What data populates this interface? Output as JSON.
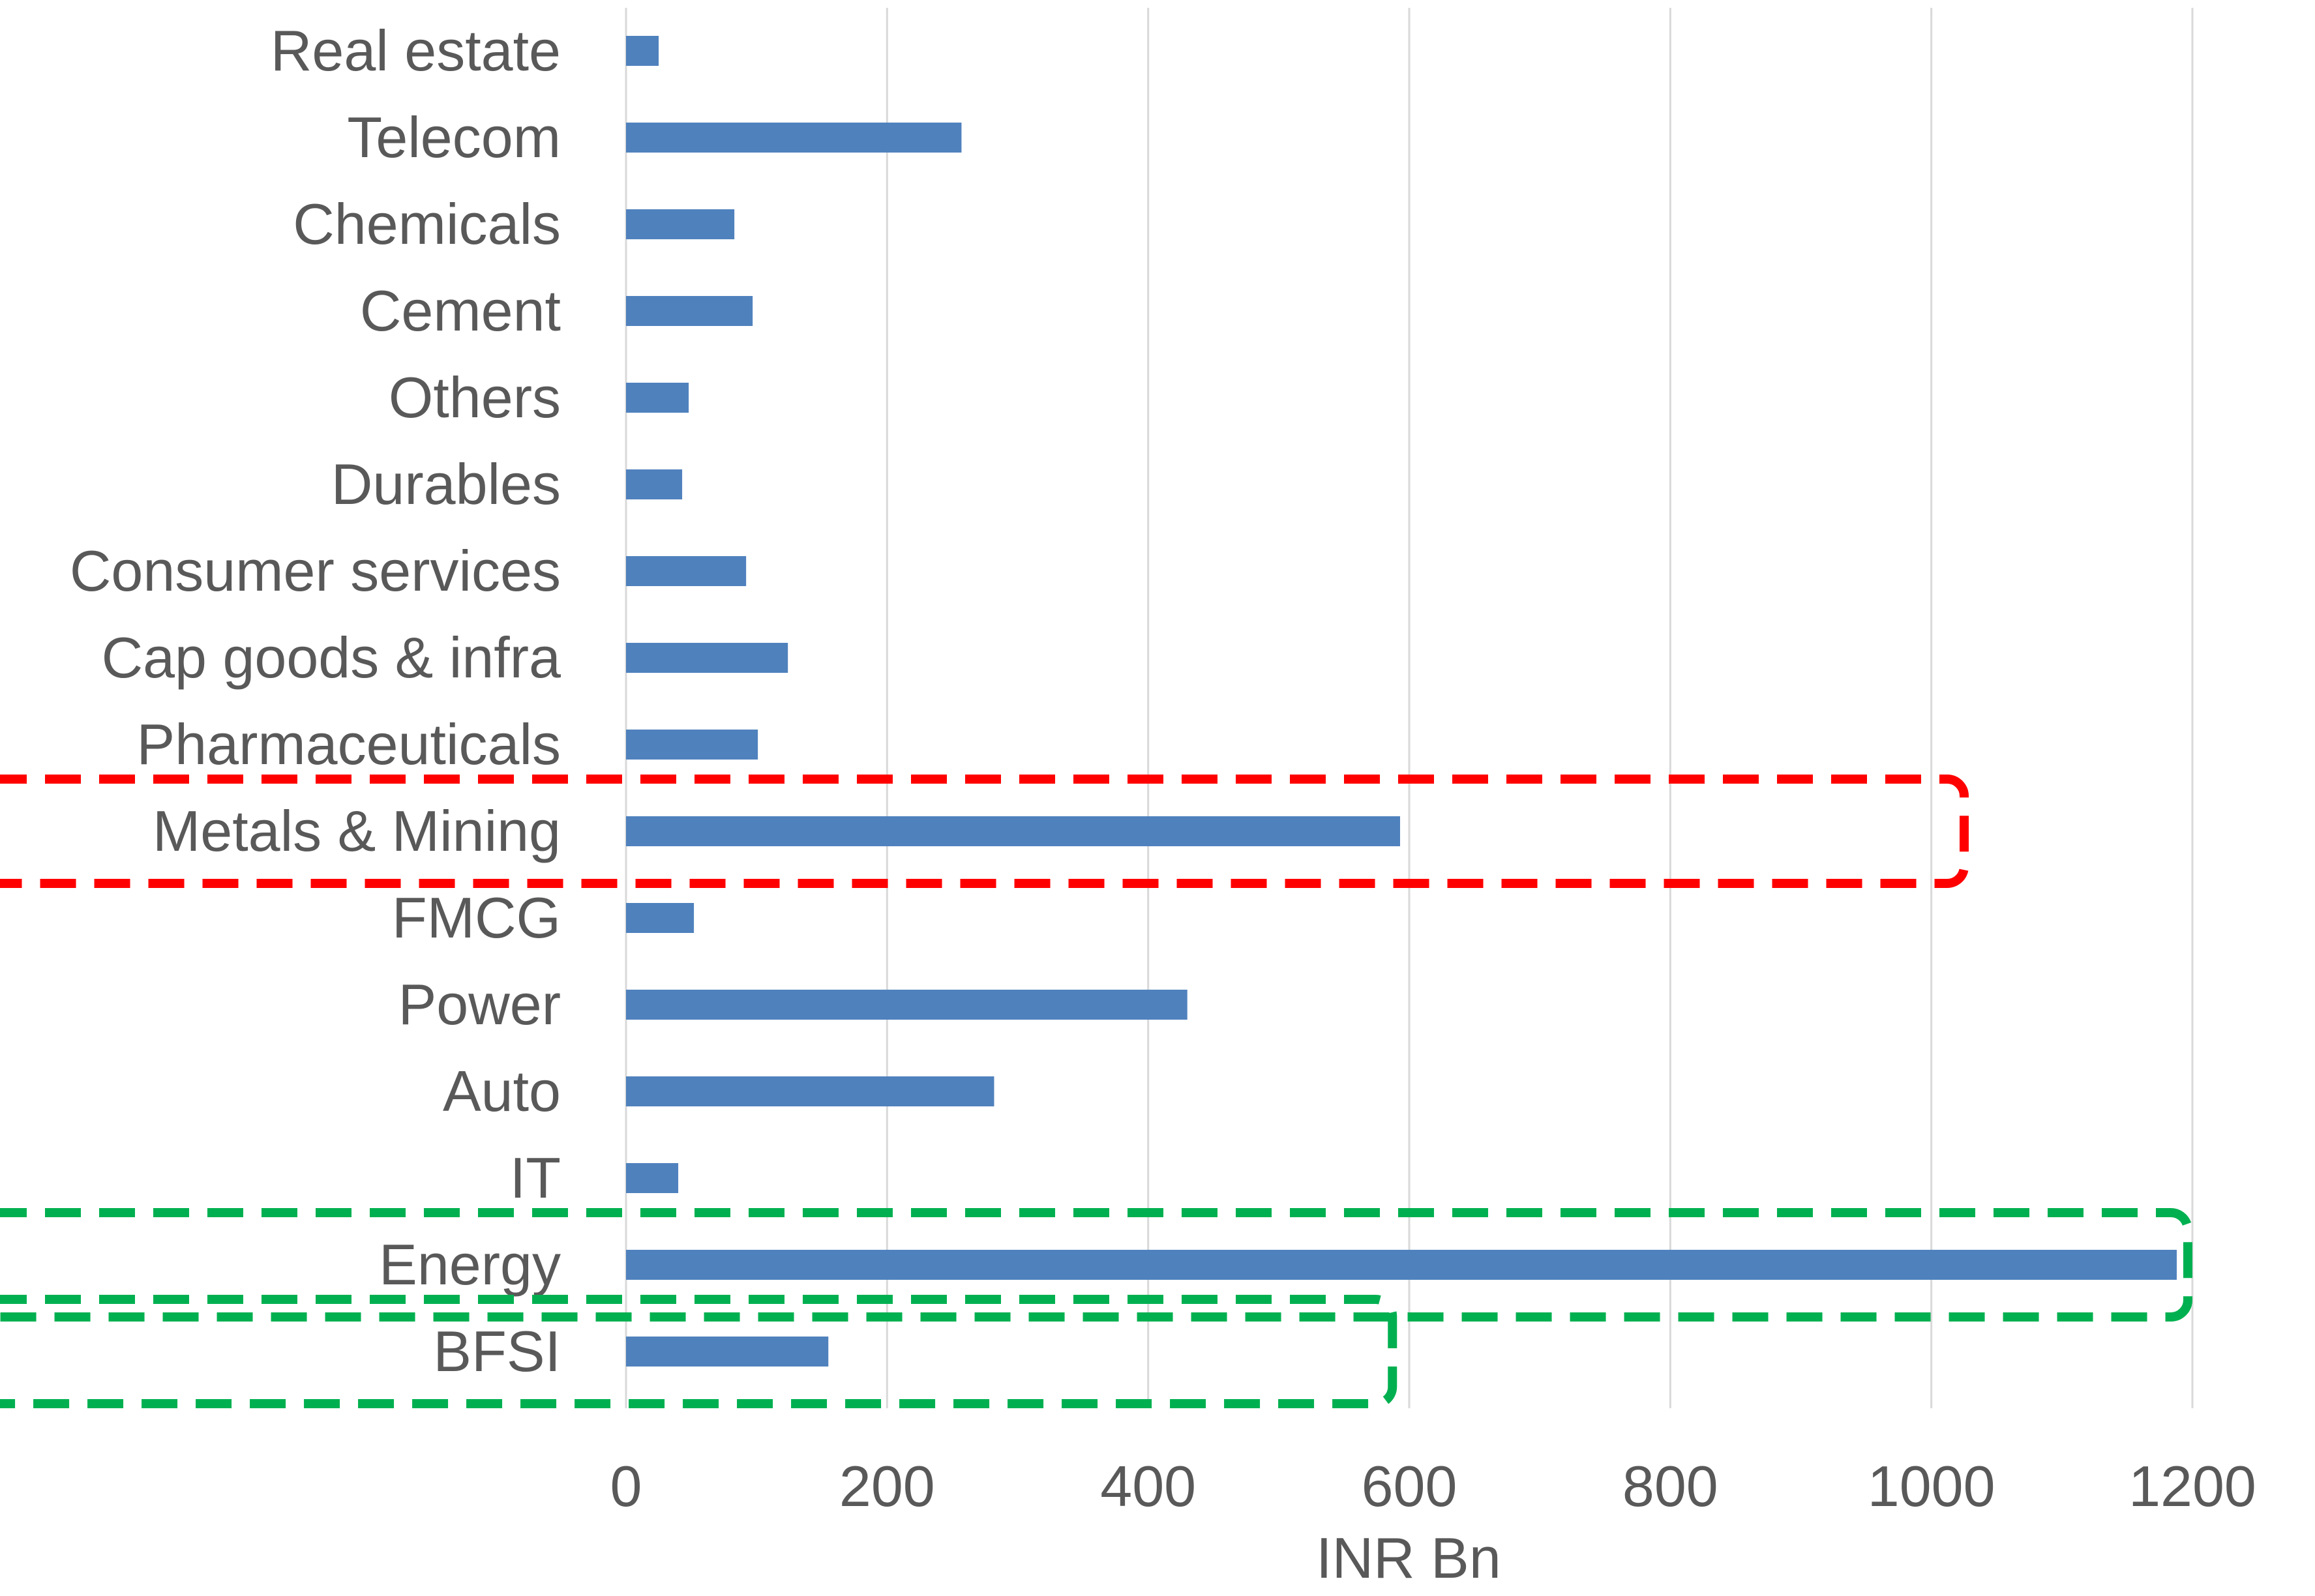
{
  "chart_data": {
    "type": "bar",
    "orientation": "horizontal",
    "title": "",
    "xlabel": "INR Bn",
    "ylabel": "",
    "xlim": [
      0,
      1200
    ],
    "xticks": [
      0,
      200,
      400,
      600,
      800,
      1000,
      1200
    ],
    "grid": "vertical",
    "legend": "none",
    "bar_color": "#4f81bd",
    "categories": [
      "Real estate",
      "Telecom",
      "Chemicals",
      "Cement",
      "Others",
      "Durables",
      "Consumer services",
      "Cap goods & infra",
      "Pharmaceuticals",
      "Metals & Mining",
      "FMCG",
      "Power",
      "Auto",
      "IT",
      "Energy",
      "BFSI"
    ],
    "values": [
      25,
      257,
      83,
      97,
      48,
      43,
      92,
      124,
      101,
      593,
      52,
      430,
      282,
      40,
      1188,
      155
    ],
    "highlights": [
      {
        "category": "Metals & Mining",
        "color": "#ff0000",
        "style": "dashed"
      },
      {
        "category": "Energy",
        "color": "#00b050",
        "style": "dashed"
      },
      {
        "category": "BFSI",
        "color": "#00b050",
        "style": "dashed"
      }
    ]
  }
}
